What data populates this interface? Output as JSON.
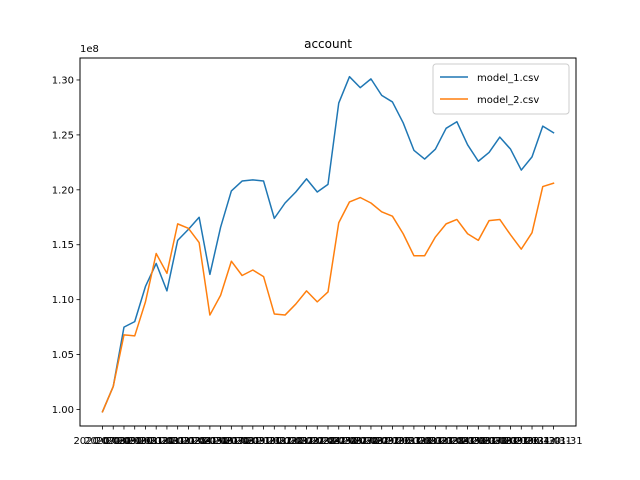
{
  "chart_data": {
    "type": "line",
    "title": "account",
    "xlabel": "",
    "ylabel": "",
    "y_offset_label": "1e8",
    "ylim": [
      0.985,
      1.32
    ],
    "y_ticks": [
      "1.00",
      "1.05",
      "1.10",
      "1.15",
      "1.20",
      "1.25",
      "1.30"
    ],
    "y_tick_values": [
      1.0,
      1.05,
      1.1,
      1.15,
      1.2,
      1.25,
      1.3
    ],
    "x_tick_labels": [
      "2020-07-31",
      "2020-08-31",
      "2020-09-30",
      "2020-10-31",
      "2020-11-30",
      "2020-12-31",
      "2021-01-31",
      "2021-02-28",
      "2021-03-31",
      "2021-04-30",
      "2021-05-31",
      "2021-06-30",
      "2021-07-31",
      "2021-08-31",
      "2021-09-30",
      "2021-10-31",
      "2021-11-30",
      "2021-12-31",
      "2022-01-31",
      "2022-02-28",
      "2022-03-31",
      "2022-04-30",
      "2022-05-31",
      "2022-06-30",
      "2022-07-31",
      "2022-08-31",
      "2022-09-30",
      "2022-10-31",
      "2022-11-30",
      "2022-12-31",
      "2023-01-31",
      "2023-02-28",
      "2023-03-31",
      "2023-04-30",
      "2023-05-31",
      "2023-06-30",
      "2023-07-31",
      "2023-08-31",
      "2023-09-30",
      "2023-10-31",
      "2023-11-30",
      "2023-12-31",
      "2024-01-31"
    ],
    "legend_position": "upper-right",
    "grid": false,
    "series": [
      {
        "name": "model_1.csv",
        "color": "#1f77b4",
        "values": [
          0.998,
          1.021,
          1.075,
          1.08,
          1.112,
          1.133,
          1.108,
          1.154,
          1.164,
          1.175,
          1.123,
          1.166,
          1.199,
          1.208,
          1.209,
          1.208,
          1.174,
          1.188,
          1.198,
          1.21,
          1.198,
          1.205,
          1.279,
          1.303,
          1.293,
          1.301,
          1.286,
          1.28,
          1.261,
          1.236,
          1.228,
          1.237,
          1.256,
          1.262,
          1.241,
          1.226,
          1.234,
          1.248,
          1.237,
          1.218,
          1.23,
          1.258,
          1.252
        ]
      },
      {
        "name": "model_2.csv",
        "color": "#ff7f0e",
        "values": [
          0.998,
          1.021,
          1.068,
          1.067,
          1.098,
          1.142,
          1.124,
          1.169,
          1.165,
          1.152,
          1.086,
          1.104,
          1.135,
          1.122,
          1.127,
          1.121,
          1.087,
          1.086,
          1.096,
          1.108,
          1.098,
          1.107,
          1.17,
          1.189,
          1.193,
          1.188,
          1.18,
          1.176,
          1.16,
          1.14,
          1.14,
          1.157,
          1.169,
          1.173,
          1.16,
          1.154,
          1.172,
          1.173,
          1.159,
          1.146,
          1.161,
          1.203,
          1.206
        ]
      }
    ]
  }
}
